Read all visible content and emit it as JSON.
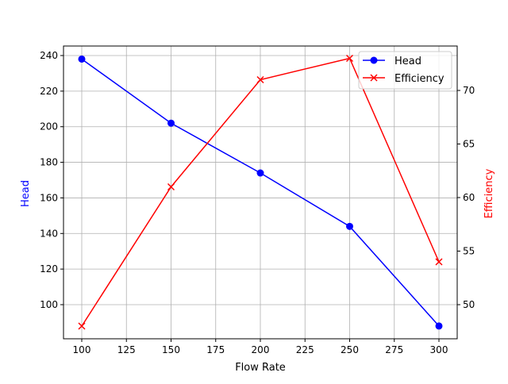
{
  "chart_data": {
    "type": "line",
    "title": "",
    "xlabel": "Flow Rate",
    "ylabel": "Head",
    "ylabel_right": "Efficiency",
    "x": [
      100,
      150,
      200,
      250,
      300
    ],
    "series": [
      {
        "name": "Head",
        "axis": "left",
        "color": "#0000ff",
        "marker": "circle",
        "values": [
          238,
          202,
          174,
          144,
          88
        ]
      },
      {
        "name": "Efficiency",
        "axis": "right",
        "color": "#ff0000",
        "marker": "x",
        "values": [
          48,
          61,
          71,
          73,
          54
        ]
      }
    ],
    "xlim": [
      90,
      310
    ],
    "ylim": [
      81,
      245
    ],
    "ylim_right": [
      47,
      74
    ],
    "xticks": [
      100,
      125,
      150,
      175,
      200,
      225,
      250,
      275,
      300
    ],
    "yticks": [
      100,
      120,
      140,
      160,
      180,
      200,
      220,
      240
    ],
    "yticks_right": [
      50,
      55,
      60,
      65,
      70
    ],
    "grid": true,
    "legend_position": "upper right"
  },
  "labels": {
    "xlabel": "Flow Rate",
    "ylabel": "Head",
    "ylabel_right": "Efficiency",
    "legend": [
      "Head",
      "Efficiency"
    ]
  }
}
